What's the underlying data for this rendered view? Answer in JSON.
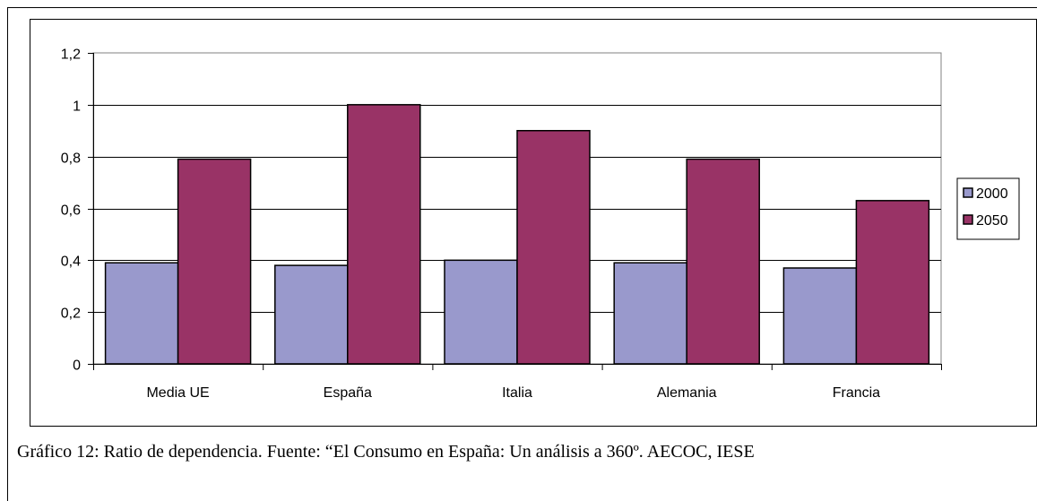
{
  "chart_data": {
    "type": "bar",
    "title": "",
    "xlabel": "",
    "ylabel": "",
    "categories": [
      "Media UE",
      "España",
      "Italia",
      "Alemania",
      "Francia"
    ],
    "series": [
      {
        "name": "2000",
        "values": [
          0.39,
          0.38,
          0.4,
          0.39,
          0.37
        ],
        "color": "#9999CC"
      },
      {
        "name": "2050",
        "values": [
          0.79,
          1.0,
          0.9,
          0.79,
          0.63
        ],
        "color": "#993366"
      }
    ],
    "ylim": [
      0,
      1.2
    ],
    "yticks": [
      "0",
      "0,2",
      "0,4",
      "0,6",
      "0,8",
      "1",
      "1,2"
    ],
    "grid": true,
    "legend_position": "right"
  },
  "caption": "Gráfico 12:  Ratio de dependencia. Fuente: “El Consumo en España: Un análisis a 360º. AECOC, IESE"
}
